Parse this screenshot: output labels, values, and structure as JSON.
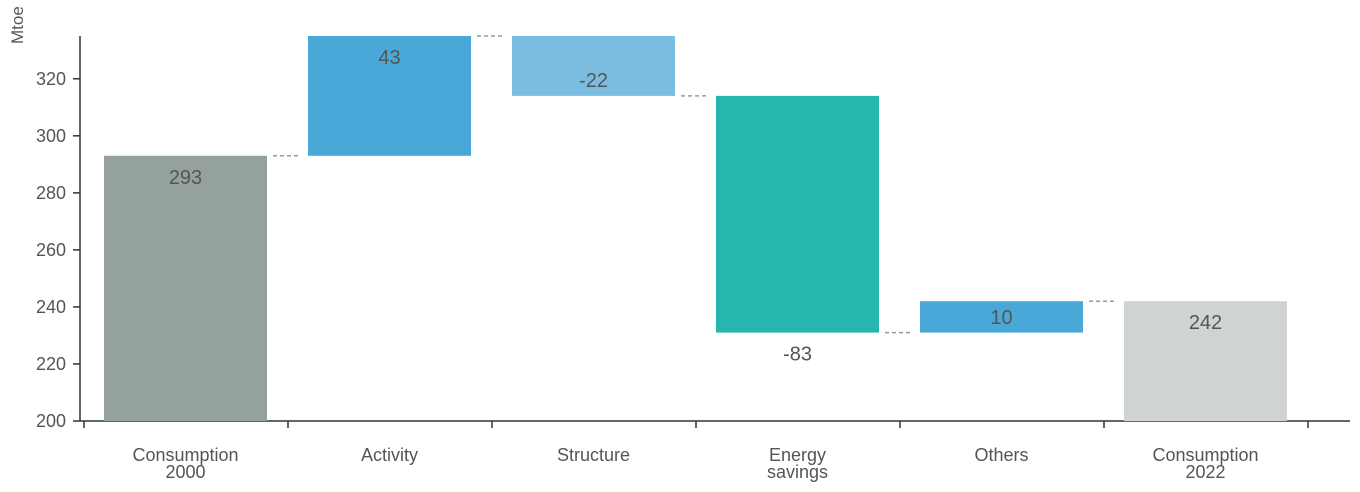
{
  "chart_data": {
    "type": "waterfall",
    "ylabel": "Mtoe",
    "ylim": [
      200,
      335
    ],
    "yticks": [
      200,
      220,
      240,
      260,
      280,
      300,
      320
    ],
    "categories": [
      [
        "Consumption",
        "2000"
      ],
      [
        "Activity"
      ],
      [
        "Structure"
      ],
      [
        "Energy",
        "savings"
      ],
      [
        "Others"
      ],
      [
        "Consumption",
        "2022"
      ]
    ],
    "bars": [
      {
        "kind": "total",
        "start": 200,
        "end": 293,
        "label": "293",
        "color": "#95a29c",
        "label_pos": "inside-top"
      },
      {
        "kind": "delta",
        "start": 293,
        "end": 335,
        "label": "43",
        "color": "#4aa8d8",
        "label_pos": "inside-top"
      },
      {
        "kind": "delta",
        "start": 335,
        "end": 314,
        "label": "-22",
        "color": "#7bbde0",
        "label_pos": "inside-bottom"
      },
      {
        "kind": "delta",
        "start": 314,
        "end": 231,
        "label": "-83",
        "color": "#26b6b0",
        "label_pos": "below"
      },
      {
        "kind": "delta",
        "start": 231,
        "end": 242,
        "label": "10",
        "color": "#4aa8d8",
        "label_pos": "inside-center"
      },
      {
        "kind": "total",
        "start": 200,
        "end": 242,
        "label": "242",
        "color": "#cfd4d1",
        "label_pos": "inside-top"
      }
    ],
    "connectors": true,
    "grid": false,
    "legend": false
  }
}
